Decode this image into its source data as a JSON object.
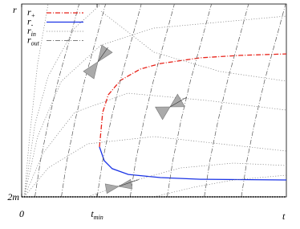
{
  "chart_data": {
    "type": "line",
    "x_label": "t",
    "y_label": "r",
    "xlim": [
      0,
      10
    ],
    "ylim": [
      2,
      10
    ],
    "xticks": [
      0,
      {
        "value": 2.85,
        "label": "t",
        "subscript": "min"
      }
    ],
    "yticks": [
      {
        "value": 2,
        "label": "2m"
      }
    ],
    "legend": "upper left",
    "series": [
      {
        "name": "r",
        "subscript": "+",
        "color": "#e8231a",
        "style": "dashdot",
        "lines": [
          {
            "x": [
              2.94,
              3.06,
              3.27,
              3.73,
              4.48,
              5.24,
              6.76,
              8.27,
              10
            ],
            "y": [
              4.07,
              5.5,
              6.23,
              6.83,
              7.3,
              7.53,
              7.77,
              7.87,
              7.93
            ]
          }
        ]
      },
      {
        "name": "r",
        "subscript": "-",
        "color": "#1a33e6",
        "style": "solid",
        "lines": [
          {
            "x": [
              2.94,
              3.12,
              3.42,
              4.03,
              5.24,
              6.76,
              10
            ],
            "y": [
              4.07,
              3.5,
              3.17,
              2.93,
              2.8,
              2.73,
              2.7
            ]
          }
        ]
      },
      {
        "name": "r",
        "subscript": "in",
        "color": "#808080",
        "style": "dotted",
        "lines": [
          {
            "x": [
              0.1,
              0.3,
              0.6,
              1.0
            ],
            "y": [
              2,
              4.5,
              7.5,
              10
            ]
          },
          {
            "x": [
              0.1,
              0.5,
              1.0,
              2.0,
              3.0
            ],
            "y": [
              2,
              5,
              7,
              9,
              10
            ]
          },
          {
            "x": [
              0.1,
              0.6,
              1.5,
              3,
              5,
              10
            ],
            "y": [
              2,
              4.5,
              6.8,
              8.3,
              9.0,
              9.5
            ]
          },
          {
            "x": [
              0.1,
              0.8,
              2,
              4,
              7,
              10
            ],
            "y": [
              2,
              3.8,
              5.5,
              6.3,
              6.0,
              5.6
            ]
          },
          {
            "x": [
              0.1,
              1,
              2.5,
              5,
              10
            ],
            "y": [
              2,
              3.2,
              4.2,
              4.5,
              3.9
            ]
          },
          {
            "x": [
              2.5,
              4,
              6,
              8,
              10
            ],
            "y": [
              2,
              2.6,
              3.2,
              3.4,
              3.3
            ]
          },
          {
            "x": [
              5,
              6.5,
              8,
              10
            ],
            "y": [
              2,
              2.4,
              2.7,
              2.9
            ]
          },
          {
            "x": [
              3,
              5,
              7.5,
              10
            ],
            "y": [
              9.7,
              8.0,
              7.2,
              6.8
            ]
          }
        ]
      },
      {
        "name": "r",
        "subscript": "out",
        "color": "#555555",
        "style": "dashdot",
        "lines": [
          {
            "x": [
              0.5,
              0.71,
              1.02,
              1.38,
              1.8,
              2.17
            ],
            "y": [
              2,
              3.5,
              5.17,
              6.83,
              8.5,
              10
            ]
          },
          {
            "x": [
              1.5,
              1.71,
              2.02,
              2.38,
              2.8,
              3.17
            ],
            "y": [
              2,
              3.5,
              5.17,
              6.83,
              8.5,
              10
            ]
          },
          {
            "x": [
              2.85,
              3.06,
              3.37,
              3.73,
              4.15,
              4.52
            ],
            "y": [
              2,
              3.5,
              5.17,
              6.83,
              8.5,
              10
            ]
          },
          {
            "x": [
              4.1,
              4.31,
              4.62,
              4.98,
              5.4,
              5.77
            ],
            "y": [
              2,
              3.5,
              5.17,
              6.83,
              8.5,
              10
            ]
          },
          {
            "x": [
              5.5,
              5.71,
              6.02,
              6.38,
              6.8,
              7.17
            ],
            "y": [
              2,
              3.5,
              5.17,
              6.83,
              8.5,
              10
            ]
          },
          {
            "x": [
              6.9,
              7.11,
              7.42,
              7.78,
              8.2,
              8.57
            ],
            "y": [
              2,
              3.5,
              5.17,
              6.83,
              8.5,
              10
            ]
          },
          {
            "x": [
              8.3,
              8.51,
              8.82,
              9.18,
              9.6,
              9.97
            ],
            "y": [
              2,
              3.5,
              5.17,
              6.83,
              8.5,
              10
            ]
          }
        ]
      }
    ]
  }
}
